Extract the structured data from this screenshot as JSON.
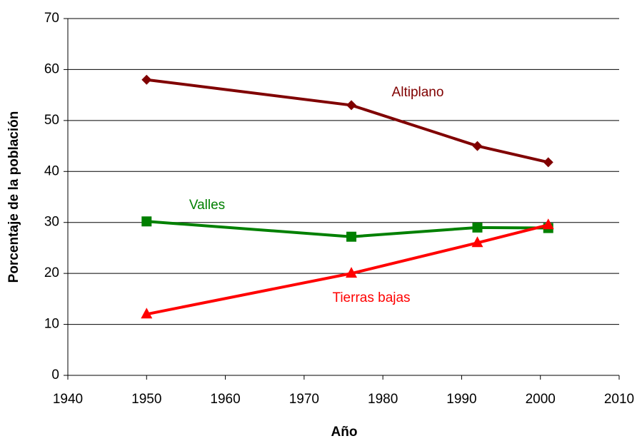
{
  "chart_data": {
    "type": "line",
    "xlabel": "Año",
    "ylabel": "Porcentaje de la población",
    "x": [
      1950,
      1976,
      1992,
      2001
    ],
    "series": [
      {
        "name": "Altiplano",
        "color": "#800000",
        "marker": "diamond",
        "values": [
          58,
          53,
          45,
          41.8
        ]
      },
      {
        "name": "Valles",
        "color": "#008000",
        "marker": "square",
        "values": [
          30.2,
          27.2,
          29,
          28.9
        ]
      },
      {
        "name": "Tierras bajas",
        "color": "#ff0000",
        "marker": "triangle",
        "values": [
          12,
          20,
          26,
          29.5
        ]
      }
    ],
    "xlim": [
      1940,
      2010
    ],
    "xticks": [
      1940,
      1950,
      1960,
      1970,
      1980,
      1990,
      2000,
      2010
    ],
    "ylim": [
      0,
      70
    ],
    "yticks": [
      0,
      10,
      20,
      30,
      40,
      50,
      60,
      70
    ],
    "grid": true
  }
}
